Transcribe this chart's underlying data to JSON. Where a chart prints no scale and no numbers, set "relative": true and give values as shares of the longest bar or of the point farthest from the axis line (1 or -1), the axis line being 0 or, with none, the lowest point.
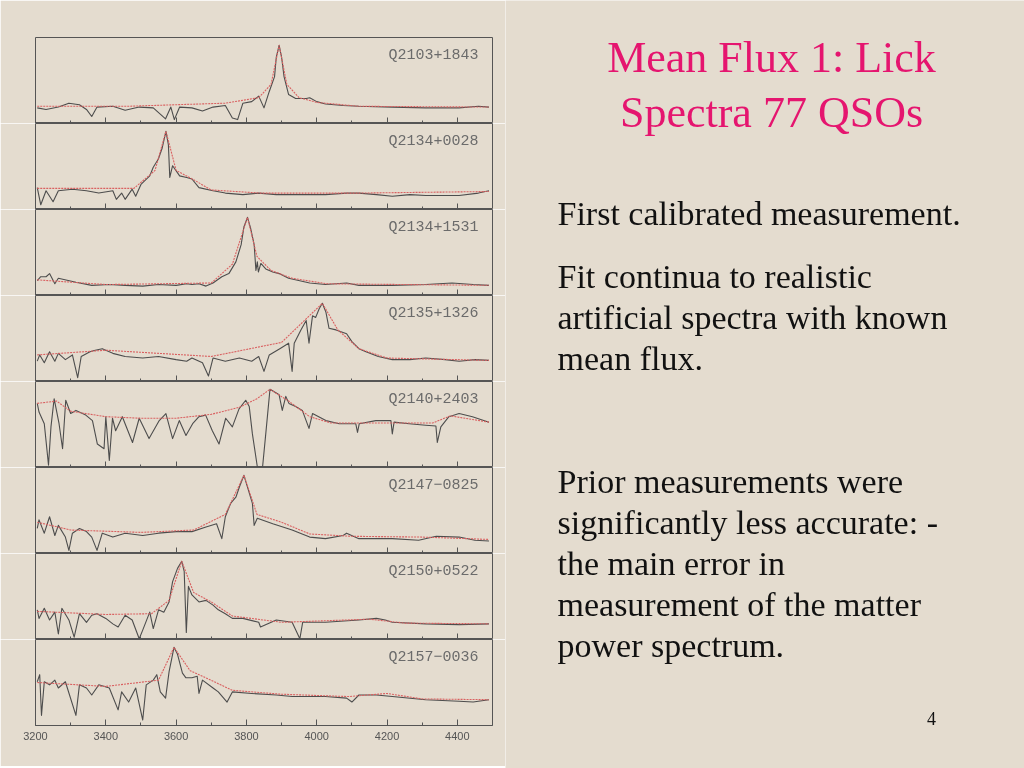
{
  "chart_data": [
    {
      "type": "line",
      "title": "Q2103+1843",
      "relative": true,
      "tick_labels": false,
      "xlim": [
        3200,
        4500
      ],
      "xticks": [
        3200,
        {
          "value": 3300,
          "label": null
        },
        3400,
        {
          "value": 3500,
          "label": null
        },
        3600,
        {
          "value": 3700,
          "label": null
        },
        3800,
        {
          "value": 3900,
          "label": null
        },
        4000,
        {
          "value": 4100,
          "label": null
        },
        4200,
        {
          "value": 4300,
          "label": null
        },
        4400
      ],
      "series": [
        {
          "color": "#4d4d4d",
          "x": [
            3205,
            3230,
            3265,
            3295,
            3325,
            3345,
            3360,
            3375,
            3420,
            3455,
            3495,
            3535,
            3570,
            3585,
            3595,
            3610,
            3645,
            3675,
            3705,
            3740,
            3760,
            3775,
            3790,
            3815,
            3835,
            3850,
            3865,
            3880,
            3885,
            3893,
            3900,
            3907,
            3920,
            3940,
            3970,
            3980,
            4000,
            4025,
            4075,
            4120,
            4215,
            4310,
            4405,
            4460,
            4490
          ],
          "values": [
            0.2,
            0.18,
            0.21,
            0.26,
            0.24,
            0.18,
            0.09,
            0.21,
            0.22,
            0.17,
            0.21,
            0.2,
            0.06,
            0.21,
            0.05,
            0.21,
            0.2,
            0.16,
            0.21,
            0.23,
            0.07,
            0.05,
            0.26,
            0.28,
            0.35,
            0.2,
            0.41,
            0.6,
            0.85,
            1.0,
            0.85,
            0.6,
            0.37,
            0.32,
            0.32,
            0.33,
            0.28,
            0.25,
            0.23,
            0.22,
            0.21,
            0.2,
            0.2,
            0.22,
            0.21
          ]
        },
        {
          "color": "#d96060",
          "line_style": "dotted",
          "x": [
            3205,
            3460,
            3740,
            3835,
            3870,
            3893,
            3915,
            3950,
            4000,
            4120,
            4490
          ],
          "values": [
            0.22,
            0.22,
            0.26,
            0.33,
            0.5,
            1.0,
            0.5,
            0.33,
            0.27,
            0.22,
            0.21
          ]
        }
      ]
    },
    {
      "type": "line",
      "title": "Q2134+0028",
      "relative": true,
      "tick_labels": false,
      "xlim": [
        3200,
        4500
      ],
      "xticks": [
        3200,
        {
          "value": 3300,
          "label": null
        },
        3400,
        {
          "value": 3500,
          "label": null
        },
        3600,
        {
          "value": 3700,
          "label": null
        },
        3800,
        {
          "value": 3900,
          "label": null
        },
        4000,
        {
          "value": 4100,
          "label": null
        },
        4200,
        {
          "value": 4300,
          "label": null
        },
        4400
      ],
      "series": [
        {
          "color": "#4d4d4d",
          "x": [
            3205,
            3215,
            3230,
            3250,
            3265,
            3305,
            3345,
            3380,
            3420,
            3430,
            3445,
            3455,
            3475,
            3485,
            3500,
            3525,
            3535,
            3550,
            3560,
            3571,
            3578,
            3582,
            3590,
            3610,
            3630,
            3645,
            3665,
            3705,
            3740,
            3790,
            3835,
            3885,
            3930,
            4025,
            4085,
            4120,
            4170,
            4215,
            4265,
            4310,
            4405,
            4460,
            4490
          ],
          "values": [
            0.28,
            0.06,
            0.24,
            0.1,
            0.24,
            0.26,
            0.24,
            0.21,
            0.24,
            0.13,
            0.21,
            0.13,
            0.26,
            0.17,
            0.32,
            0.43,
            0.54,
            0.65,
            0.78,
            1.0,
            0.83,
            0.41,
            0.56,
            0.43,
            0.41,
            0.39,
            0.28,
            0.24,
            0.21,
            0.19,
            0.21,
            0.19,
            0.19,
            0.19,
            0.21,
            0.21,
            0.19,
            0.17,
            0.19,
            0.18,
            0.18,
            0.21,
            0.24
          ]
        },
        {
          "color": "#d96060",
          "line_style": "dotted",
          "x": [
            3205,
            3480,
            3540,
            3571,
            3600,
            3650,
            3700,
            3840,
            4120,
            4490
          ],
          "values": [
            0.27,
            0.27,
            0.5,
            1.0,
            0.5,
            0.38,
            0.25,
            0.21,
            0.21,
            0.23
          ]
        }
      ]
    },
    {
      "type": "line",
      "title": "Q2134+1531",
      "relative": true,
      "tick_labels": false,
      "xlim": [
        3200,
        4500
      ],
      "xticks": [
        3200,
        {
          "value": 3300,
          "label": null
        },
        3400,
        {
          "value": 3500,
          "label": null
        },
        3600,
        {
          "value": 3700,
          "label": null
        },
        3800,
        {
          "value": 3900,
          "label": null
        },
        4000,
        {
          "value": 4100,
          "label": null
        },
        4200,
        {
          "value": 4300,
          "label": null
        },
        4400
      ],
      "series": [
        {
          "color": "#4d4d4d",
          "x": [
            3205,
            3215,
            3230,
            3240,
            3255,
            3265,
            3315,
            3360,
            3410,
            3455,
            3505,
            3550,
            3600,
            3630,
            3645,
            3665,
            3685,
            3705,
            3730,
            3750,
            3770,
            3785,
            3793,
            3803,
            3812,
            3822,
            3827,
            3831,
            3834,
            3841,
            3855,
            3875,
            3893,
            3920,
            3980,
            4025,
            4085,
            4120,
            4215,
            4310,
            4385,
            4445,
            4490
          ],
          "values": [
            0.19,
            0.24,
            0.24,
            0.28,
            0.15,
            0.22,
            0.17,
            0.13,
            0.14,
            0.13,
            0.12,
            0.14,
            0.13,
            0.15,
            0.14,
            0.15,
            0.12,
            0.16,
            0.24,
            0.28,
            0.43,
            0.65,
            0.88,
            1.0,
            0.86,
            0.65,
            0.32,
            0.43,
            0.3,
            0.41,
            0.34,
            0.3,
            0.28,
            0.22,
            0.16,
            0.14,
            0.16,
            0.13,
            0.13,
            0.14,
            0.16,
            0.14,
            0.13
          ]
        },
        {
          "color": "#d96060",
          "line_style": "dotted",
          "x": [
            3205,
            3400,
            3700,
            3760,
            3803,
            3830,
            3870,
            3930,
            4030,
            4490
          ],
          "values": [
            0.2,
            0.14,
            0.16,
            0.4,
            1.0,
            0.5,
            0.32,
            0.22,
            0.15,
            0.13
          ]
        }
      ]
    },
    {
      "type": "line",
      "title": "Q2135+1326",
      "relative": true,
      "tick_labels": false,
      "xlim": [
        3200,
        4500
      ],
      "xticks": [
        3200,
        {
          "value": 3300,
          "label": null
        },
        3400,
        {
          "value": 3500,
          "label": null
        },
        3600,
        {
          "value": 3700,
          "label": null
        },
        3800,
        {
          "value": 3900,
          "label": null
        },
        4000,
        {
          "value": 4100,
          "label": null
        },
        4200,
        {
          "value": 4300,
          "label": null
        },
        4400
      ],
      "series": [
        {
          "color": "#4d4d4d",
          "x": [
            3205,
            3212,
            3225,
            3240,
            3255,
            3265,
            3285,
            3305,
            3320,
            3330,
            3355,
            3370,
            3390,
            3420,
            3455,
            3505,
            3550,
            3600,
            3630,
            3645,
            3675,
            3692,
            3705,
            3740,
            3780,
            3815,
            3835,
            3850,
            3865,
            3895,
            3920,
            3930,
            3936,
            3955,
            3970,
            3978,
            3988,
            3997,
            4007,
            4016,
            4026,
            4035,
            4055,
            4085,
            4100,
            4120,
            4140,
            4175,
            4215,
            4265,
            4310,
            4365,
            4405,
            4450,
            4490
          ],
          "values": [
            0.26,
            0.34,
            0.24,
            0.38,
            0.26,
            0.36,
            0.28,
            0.34,
            0.05,
            0.32,
            0.38,
            0.4,
            0.42,
            0.36,
            0.32,
            0.3,
            0.32,
            0.28,
            0.26,
            0.3,
            0.24,
            0.07,
            0.3,
            0.26,
            0.3,
            0.26,
            0.32,
            0.13,
            0.34,
            0.42,
            0.49,
            0.13,
            0.49,
            0.66,
            0.78,
            0.49,
            0.84,
            0.82,
            0.93,
            1.0,
            0.89,
            0.68,
            0.66,
            0.61,
            0.51,
            0.42,
            0.38,
            0.32,
            0.28,
            0.28,
            0.3,
            0.28,
            0.26,
            0.28,
            0.27
          ]
        },
        {
          "color": "#d96060",
          "line_style": "dotted",
          "x": [
            3205,
            3400,
            3700,
            3900,
            4016,
            4060,
            4120,
            4200,
            4490
          ],
          "values": [
            0.34,
            0.4,
            0.32,
            0.5,
            1.0,
            0.66,
            0.42,
            0.3,
            0.27
          ]
        }
      ]
    },
    {
      "type": "line",
      "title": "Q2140+2403",
      "relative": true,
      "tick_labels": false,
      "xlim": [
        3200,
        4500
      ],
      "xticks": [
        3200,
        {
          "value": 3300,
          "label": null
        },
        3400,
        {
          "value": 3500,
          "label": null
        },
        3600,
        {
          "value": 3700,
          "label": null
        },
        3800,
        {
          "value": 3900,
          "label": null
        },
        4000,
        {
          "value": 4100,
          "label": null
        },
        4200,
        {
          "value": 4300,
          "label": null
        },
        4400
      ],
      "series": [
        {
          "color": "#4d4d4d",
          "x": [
            3205,
            3210,
            3225,
            3237,
            3244,
            3253,
            3267,
            3277,
            3286,
            3300,
            3315,
            3343,
            3362,
            3376,
            3395,
            3400,
            3410,
            3419,
            3428,
            3447,
            3476,
            3495,
            3523,
            3552,
            3571,
            3590,
            3609,
            3628,
            3647,
            3665,
            3684,
            3703,
            3722,
            3741,
            3760,
            3779,
            3798,
            3808,
            3817,
            3831,
            3846,
            3855,
            3867,
            3879,
            3893,
            3902,
            3912,
            3921,
            3940,
            3959,
            3978,
            3988,
            4026,
            4064,
            4111,
            4116,
            4121,
            4168,
            4211,
            4215,
            4220,
            4263,
            4310,
            4339,
            4343,
            4353,
            4376,
            4405,
            4443,
            4490
          ],
          "values": [
            0.82,
            0.71,
            0.56,
            0.03,
            0.52,
            0.88,
            0.56,
            0.24,
            0.86,
            0.69,
            0.73,
            0.67,
            0.6,
            0.3,
            0.24,
            0.65,
            0.09,
            0.63,
            0.47,
            0.65,
            0.32,
            0.63,
            0.37,
            0.6,
            0.69,
            0.37,
            0.6,
            0.41,
            0.56,
            0.65,
            0.67,
            0.47,
            0.3,
            0.63,
            0.52,
            0.75,
            0.86,
            0.78,
            0.43,
            0.01,
            0.01,
            0.43,
            1.0,
            0.97,
            0.93,
            0.73,
            0.91,
            0.82,
            0.78,
            0.73,
            0.5,
            0.69,
            0.6,
            0.56,
            0.56,
            0.45,
            0.56,
            0.6,
            0.6,
            0.43,
            0.58,
            0.56,
            0.54,
            0.53,
            0.32,
            0.52,
            0.65,
            0.69,
            0.65,
            0.58
          ]
        },
        {
          "color": "#d96060",
          "line_style": "dotted",
          "x": [
            3205,
            3260,
            3300,
            3400,
            3500,
            3600,
            3700,
            3780,
            3830,
            3867,
            3920,
            3980,
            4040,
            4200,
            4330,
            4380,
            4490
          ],
          "values": [
            0.82,
            0.85,
            0.72,
            0.65,
            0.63,
            0.63,
            0.68,
            0.77,
            0.88,
            1.0,
            0.85,
            0.65,
            0.57,
            0.57,
            0.57,
            0.66,
            0.58
          ]
        }
      ]
    },
    {
      "type": "line",
      "title": "Q2147−0825",
      "relative": true,
      "tick_labels": false,
      "xlim": [
        3200,
        4500
      ],
      "xticks": [
        3200,
        {
          "value": 3300,
          "label": null
        },
        3400,
        {
          "value": 3500,
          "label": null
        },
        3600,
        {
          "value": 3700,
          "label": null
        },
        3800,
        {
          "value": 3900,
          "label": null
        },
        4000,
        {
          "value": 4100,
          "label": null
        },
        4200,
        {
          "value": 4300,
          "label": null
        },
        4400
      ],
      "series": [
        {
          "color": "#4d4d4d",
          "x": [
            3205,
            3210,
            3225,
            3240,
            3255,
            3265,
            3285,
            3295,
            3305,
            3325,
            3345,
            3360,
            3375,
            3390,
            3420,
            3455,
            3505,
            3550,
            3600,
            3645,
            3685,
            3715,
            3730,
            3740,
            3755,
            3770,
            3780,
            3793,
            3803,
            3817,
            3822,
            3831,
            3875,
            3930,
            3980,
            4025,
            4075,
            4085,
            4120,
            4215,
            4290,
            4340,
            4405,
            4450,
            4490
          ],
          "values": [
            0.32,
            0.43,
            0.26,
            0.47,
            0.23,
            0.36,
            0.21,
            0.04,
            0.26,
            0.32,
            0.28,
            0.21,
            0.04,
            0.26,
            0.21,
            0.26,
            0.23,
            0.26,
            0.28,
            0.28,
            0.34,
            0.38,
            0.19,
            0.47,
            0.64,
            0.72,
            0.85,
            1.0,
            0.85,
            0.64,
            0.36,
            0.45,
            0.38,
            0.3,
            0.21,
            0.19,
            0.23,
            0.26,
            0.19,
            0.19,
            0.17,
            0.22,
            0.21,
            0.17,
            0.16
          ]
        },
        {
          "color": "#d96060",
          "line_style": "dotted",
          "x": [
            3205,
            3300,
            3500,
            3650,
            3740,
            3793,
            3830,
            3900,
            3980,
            4100,
            4300,
            4490
          ],
          "values": [
            0.4,
            0.3,
            0.27,
            0.3,
            0.5,
            1.0,
            0.5,
            0.4,
            0.25,
            0.22,
            0.21,
            0.18
          ]
        }
      ]
    },
    {
      "type": "line",
      "title": "Q2150+0522",
      "relative": true,
      "tick_labels": false,
      "xlim": [
        3200,
        4500
      ],
      "xticks": [
        3200,
        {
          "value": 3300,
          "label": null
        },
        3400,
        {
          "value": 3500,
          "label": null
        },
        3600,
        {
          "value": 3700,
          "label": null
        },
        3800,
        {
          "value": 3900,
          "label": null
        },
        4000,
        {
          "value": 4100,
          "label": null
        },
        4200,
        {
          "value": 4300,
          "label": null
        },
        4400
      ],
      "series": [
        {
          "color": "#4d4d4d",
          "x": [
            3205,
            3210,
            3225,
            3240,
            3255,
            3265,
            3275,
            3295,
            3310,
            3325,
            3345,
            3360,
            3375,
            3400,
            3420,
            3435,
            3455,
            3475,
            3495,
            3505,
            3525,
            3535,
            3550,
            3565,
            3580,
            3590,
            3604,
            3616,
            3623,
            3629,
            3635,
            3645,
            3665,
            3685,
            3705,
            3720,
            3740,
            3760,
            3790,
            3835,
            3840,
            3885,
            3930,
            3952,
            3960,
            4025,
            4120,
            4170,
            4195,
            4215,
            4310,
            4405,
            4490
          ],
          "values": [
            0.38,
            0.27,
            0.4,
            0.25,
            0.35,
            0.07,
            0.4,
            0.25,
            0.03,
            0.33,
            0.22,
            0.31,
            0.33,
            0.27,
            0.2,
            0.16,
            0.31,
            0.25,
            0.01,
            0.12,
            0.35,
            0.14,
            0.38,
            0.35,
            0.48,
            0.74,
            0.91,
            1.0,
            0.87,
            0.09,
            0.68,
            0.57,
            0.48,
            0.5,
            0.44,
            0.38,
            0.33,
            0.27,
            0.27,
            0.22,
            0.16,
            0.25,
            0.22,
            0.01,
            0.22,
            0.22,
            0.25,
            0.27,
            0.25,
            0.22,
            0.2,
            0.19,
            0.2
          ]
        },
        {
          "color": "#d96060",
          "line_style": "dotted",
          "x": [
            3205,
            3400,
            3530,
            3580,
            3616,
            3650,
            3700,
            3760,
            3900,
            4150,
            4250,
            4490
          ],
          "values": [
            0.36,
            0.32,
            0.33,
            0.5,
            1.0,
            0.6,
            0.48,
            0.3,
            0.22,
            0.26,
            0.21,
            0.2
          ]
        }
      ]
    },
    {
      "type": "line",
      "title": "Q2157−0036",
      "relative": true,
      "tick_labels": "x",
      "xlim": [
        3200,
        4500
      ],
      "xticks": [
        3200,
        {
          "value": 3300,
          "label": null
        },
        3400,
        {
          "value": 3500,
          "label": null
        },
        3600,
        {
          "value": 3700,
          "label": null
        },
        3800,
        {
          "value": 3900,
          "label": null
        },
        4000,
        {
          "value": 4100,
          "label": null
        },
        4200,
        {
          "value": 4300,
          "label": null
        },
        4400
      ],
      "series": [
        {
          "color": "#4d4d4d",
          "x": [
            3205,
            3212,
            3217,
            3225,
            3240,
            3255,
            3265,
            3285,
            3315,
            3325,
            3345,
            3360,
            3380,
            3410,
            3435,
            3445,
            3465,
            3485,
            3505,
            3515,
            3535,
            3545,
            3555,
            3570,
            3580,
            3594,
            3604,
            3618,
            3628,
            3645,
            3660,
            3665,
            3675,
            3705,
            3720,
            3745,
            3760,
            3815,
            3885,
            3930,
            4025,
            4085,
            4100,
            4120,
            4170,
            4215,
            4310,
            4405,
            4445,
            4490
          ],
          "values": [
            0.56,
            0.65,
            0.13,
            0.56,
            0.52,
            0.58,
            0.48,
            0.56,
            0.13,
            0.52,
            0.48,
            0.39,
            0.52,
            0.48,
            0.2,
            0.43,
            0.3,
            0.48,
            0.07,
            0.52,
            0.58,
            0.65,
            0.43,
            0.35,
            0.69,
            1.0,
            0.91,
            0.67,
            0.61,
            0.61,
            0.63,
            0.41,
            0.58,
            0.48,
            0.43,
            0.3,
            0.43,
            0.41,
            0.39,
            0.37,
            0.37,
            0.35,
            0.3,
            0.39,
            0.39,
            0.37,
            0.33,
            0.31,
            0.3,
            0.33
          ]
        },
        {
          "color": "#d96060",
          "line_style": "dotted",
          "x": [
            3205,
            3400,
            3550,
            3594,
            3640,
            3680,
            3760,
            3900,
            4090,
            4200,
            4300,
            4490
          ],
          "values": [
            0.55,
            0.5,
            0.58,
            1.0,
            0.7,
            0.62,
            0.45,
            0.4,
            0.37,
            0.41,
            0.34,
            0.33
          ]
        }
      ]
    },
    {
      "type": "other",
      "title": "Mean Flux 1: Lick Spectra 77 QSOs",
      "annotations": [
        "First calibrated measurement.",
        "Fit continua to realistic artificial spectra with known mean flux.",
        "Prior measurements were significantly less accurate: - the main error in measurement of the matter power spectrum.",
        "4"
      ]
    }
  ]
}
